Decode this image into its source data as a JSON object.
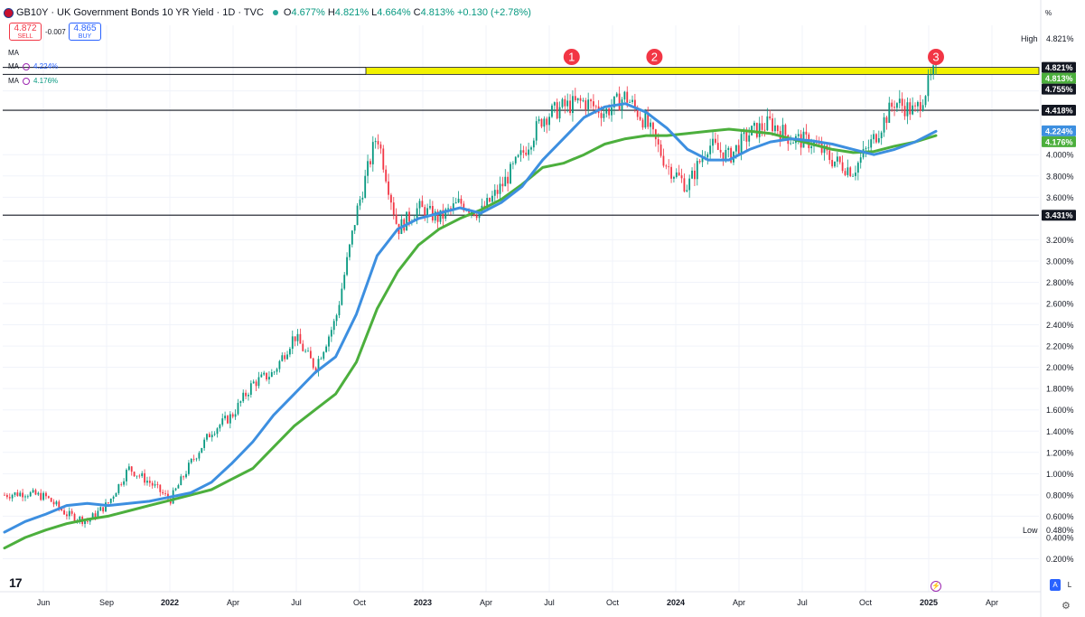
{
  "header": {
    "symbol_line": "GB10Y · UK Government Bonds 10 YR Yield · 1D · TVC",
    "o_label": "O",
    "o_value": "4.677%",
    "h_label": "H",
    "h_value": "4.821%",
    "l_label": "L",
    "l_value": "4.664%",
    "c_label": "C",
    "c_value": "4.813%",
    "change": "+0.130 (+2.78%)"
  },
  "trade": {
    "sell_price": "4.872",
    "sell_label": "SELL",
    "buy_price": "4.865",
    "buy_label": "BUY",
    "spread": "-0.007"
  },
  "indicators": [
    {
      "label": "MA",
      "value": ""
    },
    {
      "label": "MA",
      "value": "4.224%",
      "color": "#2962ff"
    },
    {
      "label": "MA",
      "value": "4.176%",
      "color": "#089981"
    }
  ],
  "colors": {
    "up": "#089981",
    "down": "#f23645",
    "ma_fast": "#3d8fe0",
    "ma_slow": "#4caf3d",
    "zone": "#f2f200"
  },
  "price_axis": {
    "unit_label": "%",
    "high_label": "High",
    "high_value": "4.821%",
    "low_label": "Low",
    "low_value": "0.480%",
    "ticks": [
      "0.200%",
      "0.400%",
      "0.600%",
      "0.800%",
      "1.000%",
      "1.200%",
      "1.400%",
      "1.600%",
      "1.800%",
      "2.000%",
      "2.200%",
      "2.400%",
      "2.600%",
      "2.800%",
      "3.000%",
      "3.200%",
      "3.600%",
      "3.800%",
      "4.000%",
      "4.600%"
    ],
    "tags": [
      {
        "text": "4.821%",
        "price": 4.821,
        "style": "dark"
      },
      {
        "text": "4.813%",
        "price": 4.813,
        "style": "green"
      },
      {
        "text": "4.755%",
        "price": 4.755,
        "style": "dark"
      },
      {
        "text": "4.418%",
        "price": 4.418,
        "style": "dark"
      },
      {
        "text": "4.224%",
        "price": 4.224,
        "style": "blue"
      },
      {
        "text": "4.176%",
        "price": 4.176,
        "style": "green"
      },
      {
        "text": "3.431%",
        "price": 3.431,
        "style": "dark"
      }
    ]
  },
  "time_axis": {
    "labels": [
      "Jun",
      "Sep",
      "2022",
      "Apr",
      "Jul",
      "Oct",
      "2023",
      "Apr",
      "Jul",
      "Oct",
      "2024",
      "Apr",
      "Jul",
      "Oct",
      "2025",
      "Apr"
    ],
    "bold": [
      "2022",
      "2023",
      "2024",
      "2025"
    ]
  },
  "annotations": {
    "markers": [
      "1",
      "2",
      "3"
    ],
    "horizontal_levels": [
      4.418,
      3.431
    ],
    "resistance_zone": [
      4.755,
      4.821
    ]
  },
  "chart_data": {
    "type": "line",
    "title": "GB10Y · UK Government Bonds 10 YR Yield · 1D · TVC",
    "y_unit": "%",
    "ylim": [
      0.1,
      5.0
    ],
    "x": [
      "2021-04",
      "2021-05",
      "2021-06",
      "2021-07",
      "2021-08",
      "2021-09",
      "2021-10",
      "2021-11",
      "2021-12",
      "2022-01",
      "2022-02",
      "2022-03",
      "2022-04",
      "2022-05",
      "2022-06",
      "2022-07",
      "2022-08",
      "2022-09",
      "2022-10",
      "2022-11",
      "2022-12",
      "2023-01",
      "2023-02",
      "2023-03",
      "2023-04",
      "2023-05",
      "2023-06",
      "2023-07",
      "2023-08",
      "2023-09",
      "2023-10",
      "2023-11",
      "2023-12",
      "2024-01",
      "2024-02",
      "2024-03",
      "2024-04",
      "2024-05",
      "2024-06",
      "2024-07",
      "2024-08",
      "2024-09",
      "2024-10",
      "2024-11",
      "2024-12",
      "2025-01"
    ],
    "series": [
      {
        "name": "GB10Y",
        "values": [
          0.8,
          0.82,
          0.78,
          0.62,
          0.55,
          0.72,
          1.05,
          0.92,
          0.75,
          1.1,
          1.4,
          1.55,
          1.85,
          1.95,
          2.3,
          2.0,
          2.45,
          3.45,
          4.2,
          3.3,
          3.5,
          3.4,
          3.55,
          3.45,
          3.7,
          4.0,
          4.35,
          4.45,
          4.5,
          4.4,
          4.55,
          4.3,
          3.9,
          3.7,
          4.1,
          3.98,
          4.2,
          4.3,
          4.15,
          4.12,
          3.95,
          3.85,
          4.15,
          4.5,
          4.4,
          4.81
        ]
      },
      {
        "name": "MA",
        "values": [
          0.45,
          0.55,
          0.62,
          0.7,
          0.72,
          0.7,
          0.72,
          0.74,
          0.78,
          0.82,
          0.92,
          1.1,
          1.3,
          1.55,
          1.75,
          1.95,
          2.1,
          2.5,
          3.05,
          3.3,
          3.4,
          3.45,
          3.5,
          3.45,
          3.55,
          3.7,
          3.95,
          4.15,
          4.35,
          4.45,
          4.48,
          4.4,
          4.25,
          4.05,
          3.95,
          3.95,
          4.05,
          4.12,
          4.15,
          4.13,
          4.1,
          4.05,
          4.0,
          4.05,
          4.12,
          4.22
        ]
      },
      {
        "name": "MA",
        "values": [
          0.3,
          0.4,
          0.47,
          0.53,
          0.57,
          0.6,
          0.65,
          0.7,
          0.75,
          0.8,
          0.85,
          0.95,
          1.05,
          1.25,
          1.45,
          1.6,
          1.75,
          2.05,
          2.55,
          2.9,
          3.15,
          3.3,
          3.4,
          3.48,
          3.58,
          3.72,
          3.88,
          3.92,
          4.0,
          4.1,
          4.15,
          4.18,
          4.18,
          4.2,
          4.22,
          4.24,
          4.22,
          4.2,
          4.15,
          4.1,
          4.05,
          4.02,
          4.03,
          4.08,
          4.12,
          4.18
        ]
      }
    ]
  }
}
